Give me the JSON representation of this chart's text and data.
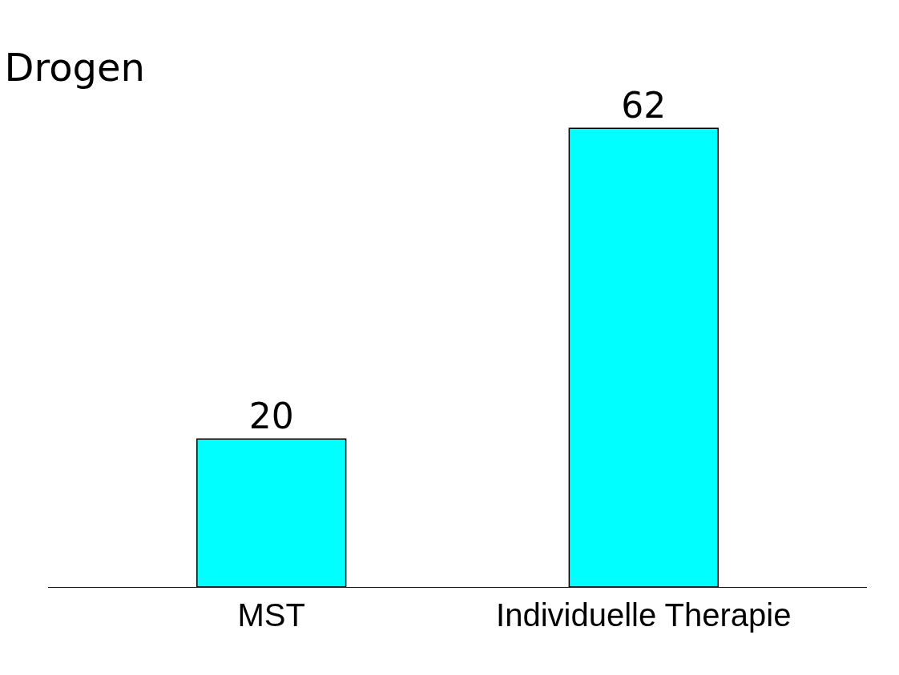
{
  "chart_data": {
    "type": "bar",
    "title": "Drogen",
    "categories": [
      "MST",
      "Individuelle Therapie"
    ],
    "values": [
      20,
      62
    ],
    "color": "#00ffff",
    "data_labels": true
  }
}
